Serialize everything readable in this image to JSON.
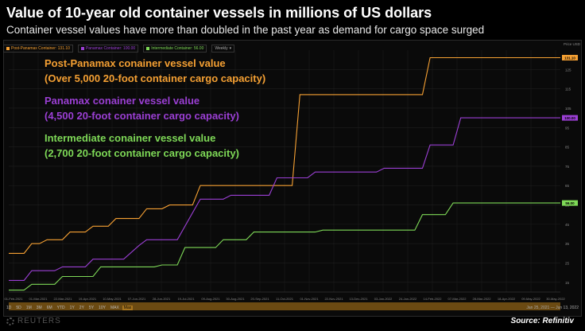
{
  "header": {
    "title": "Value of 10-year old container vessels in millions of US dollars",
    "subtitle": "Container vessel values have more than doubled in the past year as demand for cargo space surged"
  },
  "toolbar": {
    "items": [
      {
        "label": "Post-Panamax Container: 131.10",
        "color": "#f5a033"
      },
      {
        "label": "Panamax Container: 100.00",
        "color": "#9b3fd4"
      },
      {
        "label": "Intermediate Container: 56.00",
        "color": "#7ed957"
      },
      {
        "label": "Weekly"
      }
    ]
  },
  "annotations": {
    "post_panamax_line1": "Post-Panamax conainer vessel value",
    "post_panamax_line2": "(Over 5,000 20-foot container cargo capacity)",
    "panamax_line1": "Panamax conainer vessel value",
    "panamax_line2": "(4,500 20-foot container cargo capacity)",
    "intermediate_line1": "Intermediate conainer vessel value",
    "intermediate_line2": "(2,700 20-foot container cargo capacity)"
  },
  "range_buttons": [
    "1D",
    "5D",
    "1M",
    "3M",
    "6M",
    "YTD",
    "1Y",
    "2Y",
    "5Y",
    "10Y",
    "MAX",
    "Max"
  ],
  "date_range": "Jan 25, 2021  —  Jun 13, 2022",
  "footer": {
    "logo": "REUTERS",
    "source": "Source: Refinitiv"
  },
  "colors": {
    "post_panamax": "#f5a033",
    "panamax": "#9b3fd4",
    "intermediate": "#7ed957",
    "grid": "#1f1f1f",
    "axis_text": "#8a8a8a"
  },
  "chart_data": {
    "type": "line",
    "title": "Value of 10-year old container vessels in millions of US dollars",
    "ylabel": "Price USD",
    "ylim": [
      10,
      135
    ],
    "yticks": [
      15,
      25,
      35,
      45,
      55,
      65,
      75,
      85,
      95,
      105,
      115,
      125
    ],
    "x_start": "2021-01-25",
    "x_end": "2022-06-13",
    "xtick_labels": [
      "01-Feb-2021",
      "01-Mar-2021",
      "22-Mar-2021",
      "19-Apr-2021",
      "10-May-2021",
      "07-Jun-2021",
      "28-Jun-2021",
      "19-Jul-2021",
      "09-Aug-2021",
      "30-Aug-2021",
      "20-Sep-2021",
      "11-Oct-2021",
      "01-Nov-2021",
      "22-Nov-2021",
      "13-Dec-2021",
      "03-Jan-2022",
      "24-Jan-2022",
      "14-Feb-2022",
      "07-Mar-2022",
      "28-Mar-2022",
      "18-Apr-2022",
      "09-May-2022",
      "30-May-2022"
    ],
    "legend": "top-left",
    "grid": true,
    "series": [
      {
        "name": "Post-Panamax",
        "last_value_label": "131.10",
        "points": [
          [
            "2021-01-25",
            30
          ],
          [
            "2021-02-08",
            30
          ],
          [
            "2021-02-15",
            35
          ],
          [
            "2021-02-22",
            35
          ],
          [
            "2021-03-01",
            37
          ],
          [
            "2021-03-15",
            37
          ],
          [
            "2021-03-22",
            41
          ],
          [
            "2021-04-05",
            41
          ],
          [
            "2021-04-12",
            44
          ],
          [
            "2021-04-26",
            44
          ],
          [
            "2021-05-03",
            48
          ],
          [
            "2021-05-24",
            48
          ],
          [
            "2021-05-31",
            53
          ],
          [
            "2021-06-14",
            53
          ],
          [
            "2021-06-21",
            55
          ],
          [
            "2021-07-12",
            55
          ],
          [
            "2021-07-19",
            65
          ],
          [
            "2021-10-11",
            65
          ],
          [
            "2021-10-18",
            112
          ],
          [
            "2022-02-07",
            112
          ],
          [
            "2022-02-14",
            131.1
          ],
          [
            "2022-06-13",
            131.1
          ]
        ]
      },
      {
        "name": "Panamax",
        "last_value_label": "100.00",
        "points": [
          [
            "2021-01-25",
            16
          ],
          [
            "2021-02-08",
            16
          ],
          [
            "2021-02-15",
            21
          ],
          [
            "2021-03-08",
            21
          ],
          [
            "2021-03-15",
            23
          ],
          [
            "2021-04-05",
            23
          ],
          [
            "2021-04-12",
            27
          ],
          [
            "2021-05-10",
            27
          ],
          [
            "2021-05-24",
            34
          ],
          [
            "2021-05-31",
            37
          ],
          [
            "2021-06-28",
            37
          ],
          [
            "2021-07-05",
            44
          ],
          [
            "2021-07-19",
            58
          ],
          [
            "2021-08-09",
            58
          ],
          [
            "2021-08-16",
            60
          ],
          [
            "2021-09-20",
            60
          ],
          [
            "2021-09-27",
            69
          ],
          [
            "2021-10-25",
            69
          ],
          [
            "2021-11-01",
            72
          ],
          [
            "2021-12-27",
            72
          ],
          [
            "2022-01-03",
            74
          ],
          [
            "2022-02-07",
            74
          ],
          [
            "2022-02-14",
            86
          ],
          [
            "2022-03-07",
            86
          ],
          [
            "2022-03-14",
            100
          ],
          [
            "2022-06-13",
            100
          ]
        ]
      },
      {
        "name": "Intermediate",
        "last_value_label": "56.00",
        "points": [
          [
            "2021-01-25",
            11
          ],
          [
            "2021-02-08",
            11
          ],
          [
            "2021-02-15",
            14
          ],
          [
            "2021-03-08",
            14
          ],
          [
            "2021-03-15",
            18
          ],
          [
            "2021-04-12",
            18
          ],
          [
            "2021-04-19",
            23
          ],
          [
            "2021-06-07",
            23
          ],
          [
            "2021-06-14",
            24
          ],
          [
            "2021-06-28",
            24
          ],
          [
            "2021-07-05",
            33
          ],
          [
            "2021-08-02",
            33
          ],
          [
            "2021-08-09",
            37
          ],
          [
            "2021-08-30",
            37
          ],
          [
            "2021-09-06",
            41
          ],
          [
            "2021-11-01",
            41
          ],
          [
            "2021-11-08",
            42
          ],
          [
            "2022-01-31",
            42
          ],
          [
            "2022-02-07",
            50
          ],
          [
            "2022-02-28",
            50
          ],
          [
            "2022-03-07",
            56
          ],
          [
            "2022-06-13",
            56
          ]
        ]
      }
    ]
  }
}
